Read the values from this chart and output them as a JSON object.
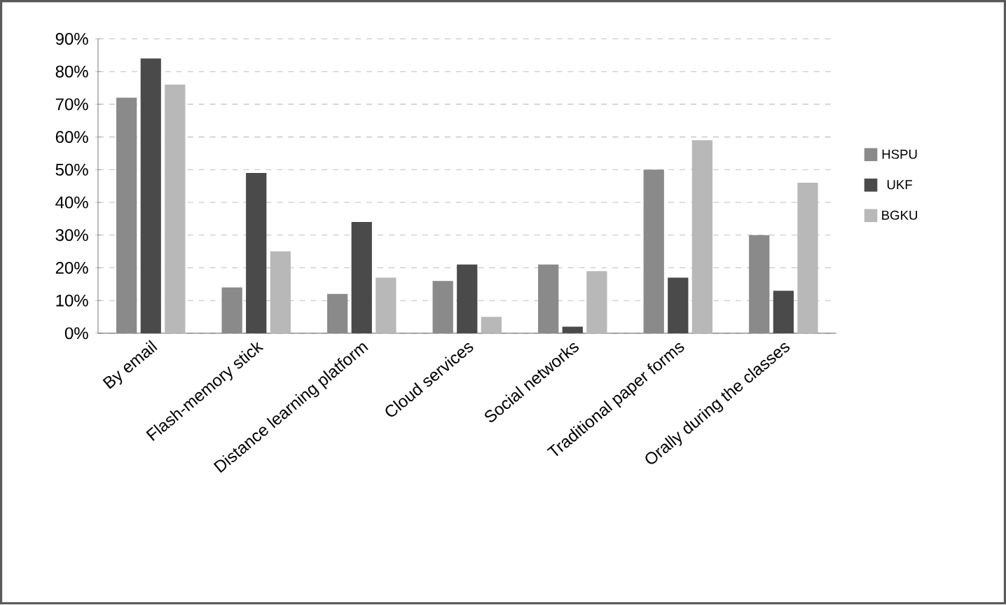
{
  "chart_data": {
    "type": "bar",
    "categories": [
      "By email",
      "Flash-memory stick",
      "Distance learning platform",
      "Cloud services",
      "Social networks",
      "Traditional paper forms",
      "Orally during the classes"
    ],
    "series": [
      {
        "name": "HSPU",
        "color": "#8a8a8a",
        "values": [
          72,
          14,
          12,
          16,
          21,
          50,
          30
        ]
      },
      {
        "name": "UKF",
        "color": "#4a4a4a",
        "values": [
          84,
          49,
          34,
          21,
          2,
          17,
          13
        ]
      },
      {
        "name": "BGKU",
        "color": "#b8b8b8",
        "values": [
          76,
          25,
          17,
          5,
          19,
          59,
          46
        ]
      }
    ],
    "ylim": [
      0,
      90
    ],
    "yticks": [
      {
        "value": 0,
        "label": "0%"
      },
      {
        "value": 10,
        "label": "10%"
      },
      {
        "value": 20,
        "label": "20%"
      },
      {
        "value": 30,
        "label": "30%"
      },
      {
        "value": 40,
        "label": "40%"
      },
      {
        "value": 50,
        "label": "50%"
      },
      {
        "value": 60,
        "label": "60%"
      },
      {
        "value": 70,
        "label": "70%"
      },
      {
        "value": 80,
        "label": "80%"
      },
      {
        "value": 90,
        "label": "90%"
      }
    ],
    "grid": "y",
    "legend": "right"
  }
}
